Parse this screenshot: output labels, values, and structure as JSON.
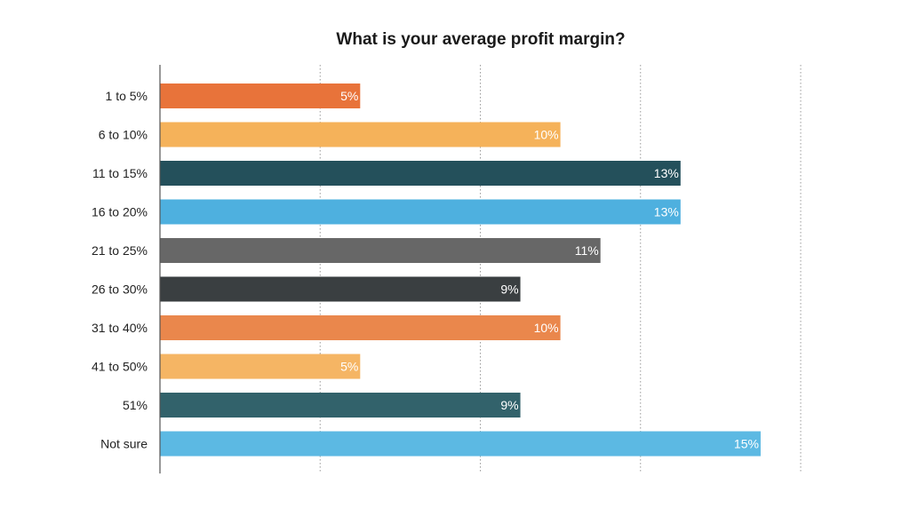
{
  "chart_data": {
    "type": "bar",
    "orientation": "horizontal",
    "title": "What is your average profit margin?",
    "xlabel": "",
    "ylabel": "",
    "xlim": [
      0,
      16
    ],
    "gridlines": [
      4,
      8,
      12,
      16
    ],
    "grid": "vertical dotted",
    "categories": [
      "1 to 5%",
      "6 to 10%",
      "11 to 15%",
      "16 to 20%",
      "21 to 25%",
      "26 to 30%",
      "31 to 40%",
      "41 to 50%",
      "51%",
      "Not sure"
    ],
    "values": [
      5,
      10,
      13,
      13,
      11,
      9,
      10,
      5,
      9,
      15
    ],
    "value_labels": [
      "5%",
      "10%",
      "13%",
      "13%",
      "11%",
      "9%",
      "10%",
      "5%",
      "9%",
      "15%"
    ],
    "colors": [
      "#E8733A",
      "#F5B25A",
      "#24505B",
      "#4EB0DF",
      "#676767",
      "#3A3F41",
      "#EA874C",
      "#F5B564",
      "#32626B",
      "#5CB9E3"
    ],
    "legend": "none"
  }
}
